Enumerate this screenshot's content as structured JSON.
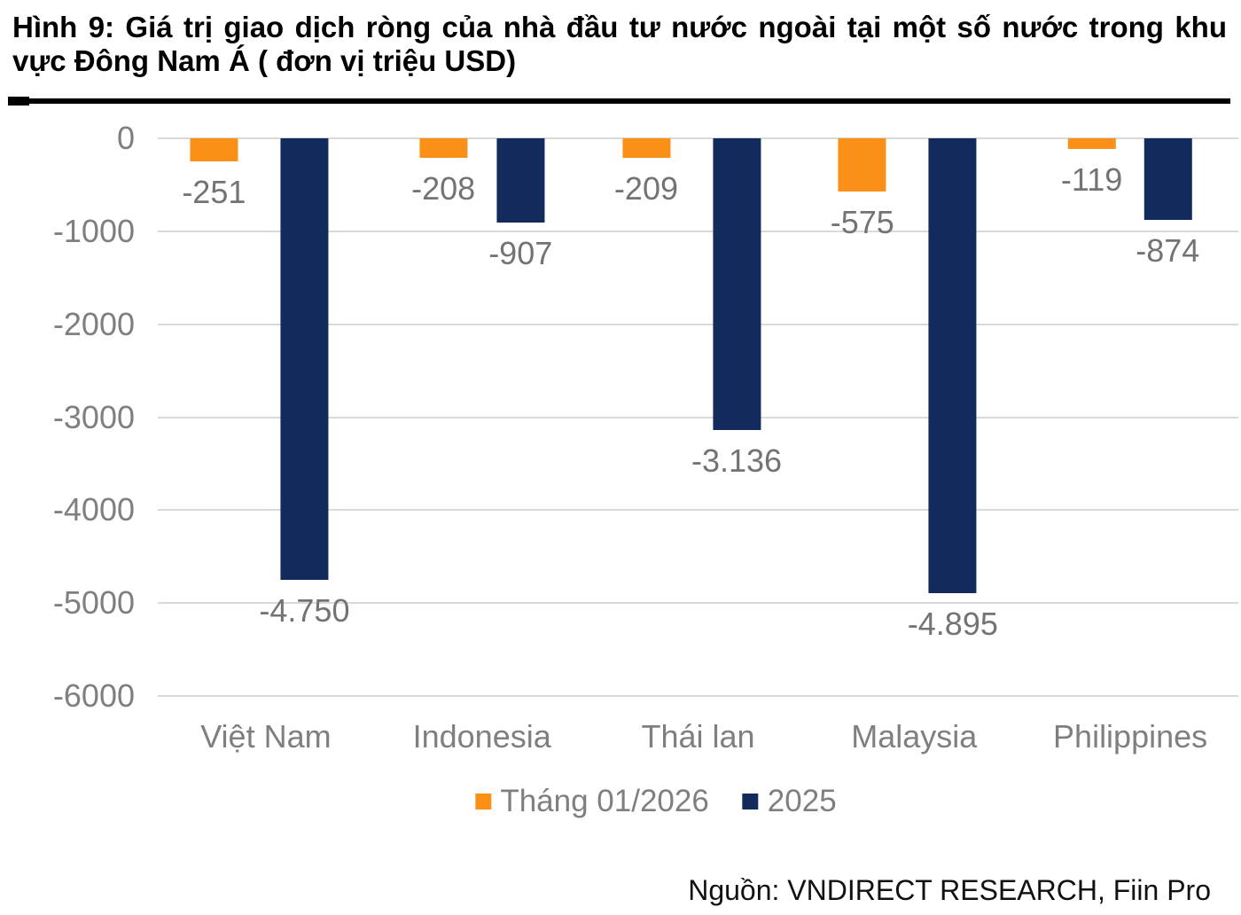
{
  "figure": {
    "title": "Hình 9: Giá trị giao dịch ròng của nhà đầu tư nước ngoài tại một số nước trong khu vực Đông Nam Á ( đơn vị triệu USD)",
    "source": "Nguồn: VNDIRECT RESEARCH, Fiin Pro"
  },
  "colors": {
    "orange": "#FA9016",
    "navy": "#122A5C",
    "gridline": "#D9D9D9",
    "axis_text": "#7F7F7F",
    "data_label": "#737373",
    "title_text": "#000000"
  },
  "chart_data": {
    "type": "bar",
    "title": "Hình 9: Giá trị giao dịch ròng của nhà đầu tư nước ngoài tại một số nước trong khu vực Đông Nam Á ( đơn vị triệu USD)",
    "xlabel": "",
    "ylabel": "",
    "unit": "triệu USD",
    "categories": [
      "Việt Nam",
      "Indonesia",
      "Thái lan",
      "Malaysia",
      "Philippines"
    ],
    "series": [
      {
        "name": "Tháng 01/2026",
        "color": "#FA9016",
        "values": [
          -251,
          -208,
          -209,
          -575,
          -119
        ],
        "labels": [
          "-251",
          "-208",
          "-209",
          "-575",
          "-119"
        ]
      },
      {
        "name": "2025",
        "color": "#122A5C",
        "values": [
          -4750,
          -907,
          -3136,
          -4895,
          -874
        ],
        "labels": [
          "-4.750",
          "-907",
          "-3.136",
          "-4.895",
          "-874"
        ]
      }
    ],
    "ylim": [
      -6000,
      0
    ],
    "yticks": [
      0,
      -1000,
      -2000,
      -3000,
      -4000,
      -5000,
      -6000
    ],
    "ytick_labels": [
      "0",
      "-1000",
      "-2000",
      "-3000",
      "-4000",
      "-5000",
      "-6000"
    ],
    "grid": true,
    "legend_position": "bottom"
  }
}
